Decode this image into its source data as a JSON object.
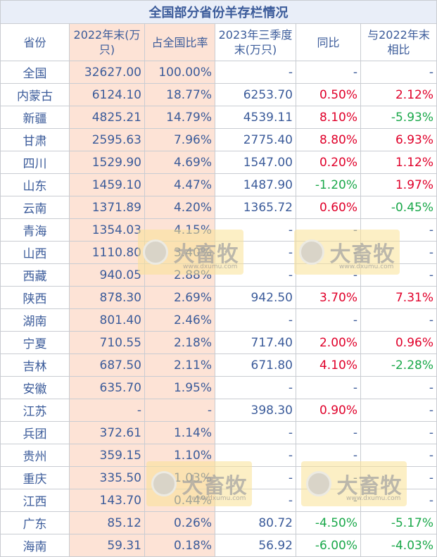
{
  "title": "全国部分省份羊存栏情况",
  "headers": [
    "省份",
    "2022年末(万只)",
    "占全国比率",
    "2023年三季度末(万只)",
    "同比",
    "与2022年末相比"
  ],
  "rows": [
    {
      "province": "全国",
      "y2022": "32627.00",
      "share": "100.00%",
      "q3_2023": "-",
      "yoy": "-",
      "vs2022": "-",
      "yoy_color": "",
      "vs_color": ""
    },
    {
      "province": "内蒙古",
      "y2022": "6124.10",
      "share": "18.77%",
      "q3_2023": "6253.70",
      "yoy": "0.50%",
      "vs2022": "2.12%",
      "yoy_color": "red",
      "vs_color": "red"
    },
    {
      "province": "新疆",
      "y2022": "4825.21",
      "share": "14.79%",
      "q3_2023": "4539.11",
      "yoy": "8.10%",
      "vs2022": "-5.93%",
      "yoy_color": "red",
      "vs_color": "green"
    },
    {
      "province": "甘肃",
      "y2022": "2595.63",
      "share": "7.96%",
      "q3_2023": "2775.40",
      "yoy": "8.80%",
      "vs2022": "6.93%",
      "yoy_color": "red",
      "vs_color": "red"
    },
    {
      "province": "四川",
      "y2022": "1529.90",
      "share": "4.69%",
      "q3_2023": "1547.00",
      "yoy": "0.20%",
      "vs2022": "1.12%",
      "yoy_color": "red",
      "vs_color": "red"
    },
    {
      "province": "山东",
      "y2022": "1459.10",
      "share": "4.47%",
      "q3_2023": "1487.90",
      "yoy": "-1.20%",
      "vs2022": "1.97%",
      "yoy_color": "green",
      "vs_color": "red"
    },
    {
      "province": "云南",
      "y2022": "1371.89",
      "share": "4.20%",
      "q3_2023": "1365.72",
      "yoy": "0.60%",
      "vs2022": "-0.45%",
      "yoy_color": "red",
      "vs_color": "green"
    },
    {
      "province": "青海",
      "y2022": "1354.03",
      "share": "4.15%",
      "q3_2023": "-",
      "yoy": "-",
      "vs2022": "-",
      "yoy_color": "",
      "vs_color": ""
    },
    {
      "province": "山西",
      "y2022": "1110.80",
      "share": "3.40%",
      "q3_2023": "-",
      "yoy": "-",
      "vs2022": "-",
      "yoy_color": "",
      "vs_color": ""
    },
    {
      "province": "西藏",
      "y2022": "940.05",
      "share": "2.88%",
      "q3_2023": "-",
      "yoy": "-",
      "vs2022": "-",
      "yoy_color": "",
      "vs_color": ""
    },
    {
      "province": "陕西",
      "y2022": "878.30",
      "share": "2.69%",
      "q3_2023": "942.50",
      "yoy": "3.70%",
      "vs2022": "7.31%",
      "yoy_color": "red",
      "vs_color": "red"
    },
    {
      "province": "湖南",
      "y2022": "801.40",
      "share": "2.46%",
      "q3_2023": "-",
      "yoy": "-",
      "vs2022": "-",
      "yoy_color": "",
      "vs_color": ""
    },
    {
      "province": "宁夏",
      "y2022": "710.55",
      "share": "2.18%",
      "q3_2023": "717.40",
      "yoy": "2.00%",
      "vs2022": "0.96%",
      "yoy_color": "red",
      "vs_color": "red"
    },
    {
      "province": "吉林",
      "y2022": "687.50",
      "share": "2.11%",
      "q3_2023": "671.80",
      "yoy": "4.10%",
      "vs2022": "-2.28%",
      "yoy_color": "red",
      "vs_color": "green"
    },
    {
      "province": "安徽",
      "y2022": "635.70",
      "share": "1.95%",
      "q3_2023": "-",
      "yoy": "-",
      "vs2022": "-",
      "yoy_color": "",
      "vs_color": ""
    },
    {
      "province": "江苏",
      "y2022": "-",
      "share": "-",
      "q3_2023": "398.30",
      "yoy": "0.90%",
      "vs2022": "-",
      "yoy_color": "red",
      "vs_color": ""
    },
    {
      "province": "兵团",
      "y2022": "372.61",
      "share": "1.14%",
      "q3_2023": "-",
      "yoy": "-",
      "vs2022": "-",
      "yoy_color": "",
      "vs_color": ""
    },
    {
      "province": "贵州",
      "y2022": "359.15",
      "share": "1.10%",
      "q3_2023": "-",
      "yoy": "-",
      "vs2022": "-",
      "yoy_color": "",
      "vs_color": ""
    },
    {
      "province": "重庆",
      "y2022": "335.50",
      "share": "1.03%",
      "q3_2023": "-",
      "yoy": "-",
      "vs2022": "-",
      "yoy_color": "",
      "vs_color": ""
    },
    {
      "province": "江西",
      "y2022": "143.70",
      "share": "0.44%",
      "q3_2023": "-",
      "yoy": "-",
      "vs2022": "-",
      "yoy_color": "",
      "vs_color": ""
    },
    {
      "province": "广东",
      "y2022": "85.12",
      "share": "0.26%",
      "q3_2023": "80.72",
      "yoy": "-4.50%",
      "vs2022": "-5.17%",
      "yoy_color": "green",
      "vs_color": "green"
    },
    {
      "province": "海南",
      "y2022": "59.31",
      "share": "0.18%",
      "q3_2023": "56.92",
      "yoy": "-6.00%",
      "vs2022": "-4.03%",
      "yoy_color": "green",
      "vs_color": "green"
    }
  ],
  "watermark": {
    "brand": "大畜牧",
    "site": "www.dxumu.com"
  },
  "colors": {
    "text": "#3b5b9a",
    "red": "#e0002a",
    "green": "#1aa84a",
    "highlight": "#fde3d6",
    "border": "#c9ccd2"
  }
}
